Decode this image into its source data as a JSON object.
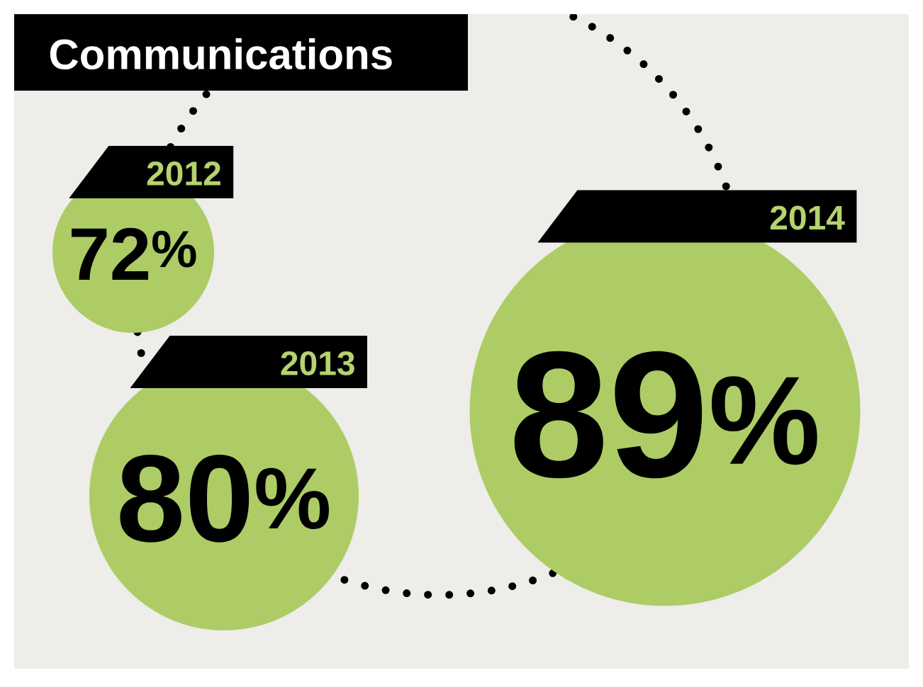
{
  "chart_data": {
    "type": "other",
    "title": "Communications",
    "categories": [
      "2012",
      "2013",
      "2014"
    ],
    "values": [
      72,
      80,
      89
    ],
    "value_labels": [
      "72$^{%}$",
      "80$^{%}$",
      "89$^{%}$"
    ],
    "color": "#adcc66"
  }
}
